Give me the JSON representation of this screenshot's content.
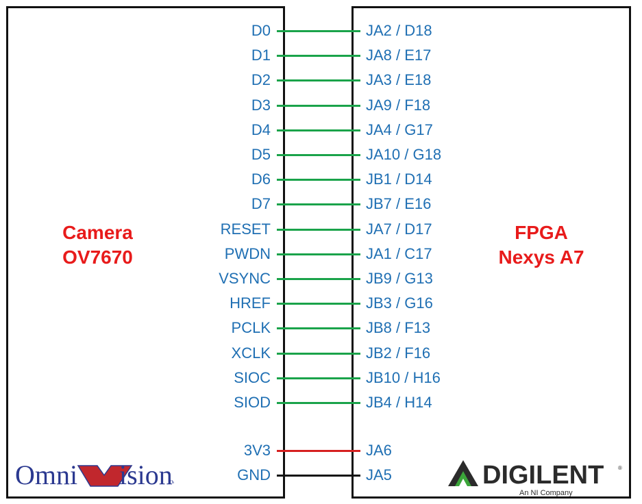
{
  "colors": {
    "pin_text": "#1f6fb3",
    "title_text": "#e81b1b",
    "data_wire": "#1aa34a",
    "power_wire": "#d62020",
    "ground_wire": "#111111",
    "omnivision_blue": "#2b3990",
    "omnivision_red": "#c1272d",
    "digilent_dark": "#2b2b2b",
    "digilent_green": "#3ba53a"
  },
  "camera": {
    "title_line1": "Camera",
    "title_line2": "OV7670",
    "logo_text": "OmniVision"
  },
  "fpga": {
    "title_line1": "FPGA",
    "title_line2": "Nexys A7",
    "logo_text": "DIGILENT",
    "logo_tagline": "An NI Company"
  },
  "connections": [
    {
      "camera_pin": "D0",
      "fpga_pin": "JA2 / D18",
      "wire": "data"
    },
    {
      "camera_pin": "D1",
      "fpga_pin": "JA8 / E17",
      "wire": "data"
    },
    {
      "camera_pin": "D2",
      "fpga_pin": "JA3 / E18",
      "wire": "data"
    },
    {
      "camera_pin": "D3",
      "fpga_pin": "JA9 / F18",
      "wire": "data"
    },
    {
      "camera_pin": "D4",
      "fpga_pin": "JA4 / G17",
      "wire": "data"
    },
    {
      "camera_pin": "D5",
      "fpga_pin": "JA10 / G18",
      "wire": "data"
    },
    {
      "camera_pin": "D6",
      "fpga_pin": "JB1 / D14",
      "wire": "data"
    },
    {
      "camera_pin": "D7",
      "fpga_pin": "JB7 / E16",
      "wire": "data"
    },
    {
      "camera_pin": "RESET",
      "fpga_pin": "JA7 / D17",
      "wire": "data"
    },
    {
      "camera_pin": "PWDN",
      "fpga_pin": "JA1 / C17",
      "wire": "data"
    },
    {
      "camera_pin": "VSYNC",
      "fpga_pin": "JB9 / G13",
      "wire": "data"
    },
    {
      "camera_pin": "HREF",
      "fpga_pin": "JB3 / G16",
      "wire": "data"
    },
    {
      "camera_pin": "PCLK",
      "fpga_pin": "JB8 / F13",
      "wire": "data"
    },
    {
      "camera_pin": "XCLK",
      "fpga_pin": "JB2 / F16",
      "wire": "data"
    },
    {
      "camera_pin": "SIOC",
      "fpga_pin": "JB10 / H16",
      "wire": "data"
    },
    {
      "camera_pin": "SIOD",
      "fpga_pin": "JB4 / H14",
      "wire": "data"
    },
    {
      "camera_pin": "3V3",
      "fpga_pin": "JA6",
      "wire": "power"
    },
    {
      "camera_pin": "GND",
      "fpga_pin": "JA5",
      "wire": "ground"
    }
  ]
}
